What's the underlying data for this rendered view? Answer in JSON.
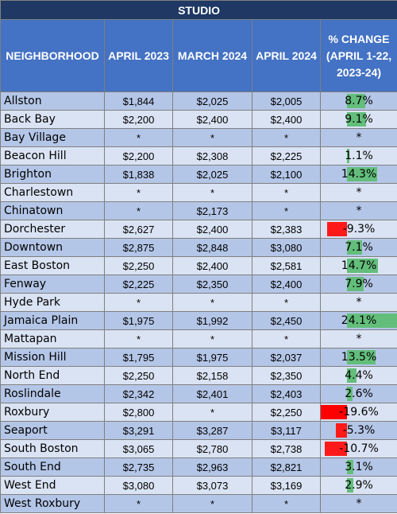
{
  "title": "STUDIO",
  "headers": {
    "neighborhood": "NEIGHBORHOOD",
    "april_2023": "APRIL 2023",
    "march_2024": "MARCH 2024",
    "april_2024": "APRIL 2024",
    "change": "% CHANGE (APRIL 1-22, 2023-24)"
  },
  "rows": [
    {
      "name": "Allston",
      "apr2023": "$1,844",
      "mar2024": "$2,025",
      "apr2024": "$2,005",
      "change": "8.7%",
      "change_value": 8.7
    },
    {
      "name": "Back Bay",
      "apr2023": "$2,200",
      "mar2024": "$2,400",
      "apr2024": "$2,400",
      "change": "9.1%",
      "change_value": 9.1
    },
    {
      "name": "Bay Village",
      "apr2023": "*",
      "mar2024": "*",
      "apr2024": "*",
      "change": "*",
      "change_value": null
    },
    {
      "name": "Beacon Hill",
      "apr2023": "$2,200",
      "mar2024": "$2,308",
      "apr2024": "$2,225",
      "change": "1.1%",
      "change_value": 1.1
    },
    {
      "name": "Brighton",
      "apr2023": "$1,838",
      "mar2024": "$2,025",
      "apr2024": "$2,100",
      "change": "14.3%",
      "change_value": 14.3
    },
    {
      "name": "Charlestown",
      "apr2023": "*",
      "mar2024": "*",
      "apr2024": "*",
      "change": "*",
      "change_value": null
    },
    {
      "name": "Chinatown",
      "apr2023": "*",
      "mar2024": "$2,173",
      "apr2024": "*",
      "change": "*",
      "change_value": null
    },
    {
      "name": "Dorchester",
      "apr2023": "$2,627",
      "mar2024": "$2,400",
      "apr2024": "$2,383",
      "change": "-9.3%",
      "change_value": -9.3
    },
    {
      "name": "Downtown",
      "apr2023": "$2,875",
      "mar2024": "$2,848",
      "apr2024": "$3,080",
      "change": "7.1%",
      "change_value": 7.1
    },
    {
      "name": "East Boston",
      "apr2023": "$2,250",
      "mar2024": "$2,400",
      "apr2024": "$2,581",
      "change": "14.7%",
      "change_value": 14.7
    },
    {
      "name": "Fenway",
      "apr2023": "$2,225",
      "mar2024": "$2,350",
      "apr2024": "$2,400",
      "change": "7.9%",
      "change_value": 7.9
    },
    {
      "name": "Hyde Park",
      "apr2023": "*",
      "mar2024": "*",
      "apr2024": "*",
      "change": "*",
      "change_value": null
    },
    {
      "name": "Jamaica Plain",
      "apr2023": "$1,975",
      "mar2024": "$1,992",
      "apr2024": "$2,450",
      "change": "24.1%",
      "change_value": 24.1
    },
    {
      "name": "Mattapan",
      "apr2023": "*",
      "mar2024": "*",
      "apr2024": "*",
      "change": "*",
      "change_value": null
    },
    {
      "name": "Mission Hill",
      "apr2023": "$1,795",
      "mar2024": "$1,975",
      "apr2024": "$2,037",
      "change": "13.5%",
      "change_value": 13.5
    },
    {
      "name": "North End",
      "apr2023": "$2,250",
      "mar2024": "$2,158",
      "apr2024": "$2,350",
      "change": "4.4%",
      "change_value": 4.4
    },
    {
      "name": "Roslindale",
      "apr2023": "$2,342",
      "mar2024": "$2,401",
      "apr2024": "$2,403",
      "change": "2.6%",
      "change_value": 2.6
    },
    {
      "name": "Roxbury",
      "apr2023": "$2,800",
      "mar2024": "*",
      "apr2024": "$2,250",
      "change": "-19.6%",
      "change_value": -19.6
    },
    {
      "name": "Seaport",
      "apr2023": "$3,291",
      "mar2024": "$3,287",
      "apr2024": "$3,117",
      "change": "-5.3%",
      "change_value": -5.3
    },
    {
      "name": "South Boston",
      "apr2023": "$3,065",
      "mar2024": "$2,780",
      "apr2024": "$2,738",
      "change": "-10.7%",
      "change_value": -10.7
    },
    {
      "name": "South End",
      "apr2023": "$2,735",
      "mar2024": "$2,963",
      "apr2024": "$2,821",
      "change": "3.1%",
      "change_value": 3.1
    },
    {
      "name": "West End",
      "apr2023": "$3,080",
      "mar2024": "$3,073",
      "apr2024": "$3,169",
      "change": "2.9%",
      "change_value": 2.9
    },
    {
      "name": "West Roxbury",
      "apr2023": "*",
      "mar2024": "*",
      "apr2024": "*",
      "change": "*",
      "change_value": null
    }
  ],
  "colors": {
    "title_bg": "#1f3864",
    "header_bg": "#4472c4",
    "row_odd": "#b4c6e7",
    "row_even": "#dae3f3",
    "bar_positive": "#63be7b",
    "bar_negative": "#ff0000"
  }
}
